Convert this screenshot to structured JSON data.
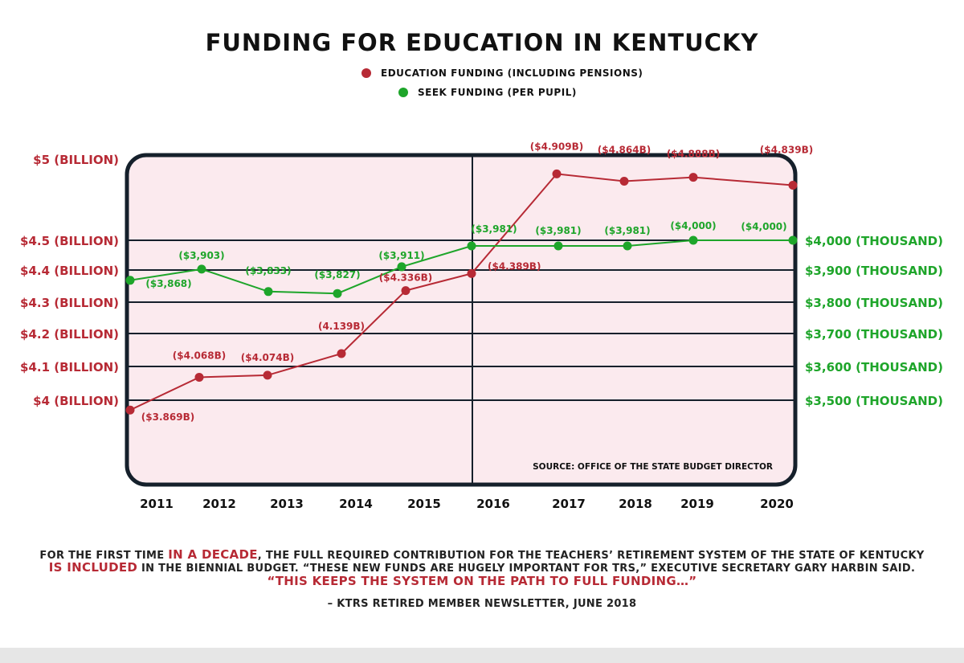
{
  "title": "FUNDING FOR EDUCATION IN KENTUCKY",
  "legend": [
    {
      "label": "EDUCATION FUNDING (INCLUDING PENSIONS)",
      "color": "#b72a35"
    },
    {
      "label": "SEEK FUNDING (PER PUPIL)",
      "color": "#1ea52a"
    }
  ],
  "colors": {
    "red": "#b72a35",
    "green": "#1ea52a",
    "frame": "#15202b",
    "plot_bg": "#fbeaee"
  },
  "source": "SOURCE: OFFICE OF THE STATE BUDGET DIRECTOR",
  "chart_data": {
    "type": "line",
    "title": "FUNDING FOR EDUCATION IN KENTUCKY",
    "categories": [
      "2011",
      "2012",
      "2013",
      "2014",
      "2015",
      "2016",
      "2017",
      "2018",
      "2019",
      "2020"
    ],
    "left_axis": {
      "ticks": [
        {
          "value": 5.0,
          "label": "$5 (BILLION)"
        },
        {
          "value": 4.5,
          "label": "$4.5 (BILLION)"
        },
        {
          "value": 4.4,
          "label": "$4.4 (BILLION)"
        },
        {
          "value": 4.3,
          "label": "$4.3 (BILLION)"
        },
        {
          "value": 4.2,
          "label": "$4.2 (BILLION)"
        },
        {
          "value": 4.1,
          "label": "$4.1 (BILLION)"
        },
        {
          "value": 4.0,
          "label": "$4 (BILLION)"
        }
      ]
    },
    "right_axis": {
      "ticks": [
        {
          "value": 4000,
          "label": "$4,000 (THOUSAND)"
        },
        {
          "value": 3900,
          "label": "$3,900 (THOUSAND)"
        },
        {
          "value": 3800,
          "label": "$3,800 (THOUSAND)"
        },
        {
          "value": 3700,
          "label": "$3,700 (THOUSAND)"
        },
        {
          "value": 3600,
          "label": "$3,600 (THOUSAND)"
        },
        {
          "value": 3500,
          "label": "$3,500 (THOUSAND)"
        }
      ]
    },
    "series": [
      {
        "name": "EDUCATION FUNDING (INCLUDING PENSIONS)",
        "axis": "left",
        "values": [
          3.869,
          4.068,
          4.074,
          4.139,
          4.336,
          4.389,
          4.909,
          4.864,
          4.888,
          4.839
        ],
        "labels": [
          "($3.869B)",
          "($4.068B)",
          "($4.074B)",
          "(4.139B)",
          "($4.336B)",
          "($4.389B)",
          "($4.909B)",
          "($4.864B)",
          "($4.888B)",
          "($4.839B)"
        ]
      },
      {
        "name": "SEEK FUNDING (PER PUPIL)",
        "axis": "right",
        "values": [
          3868,
          3903,
          3833,
          3827,
          3911,
          3981,
          3981,
          3981,
          4000,
          4000
        ],
        "labels": [
          "($3,868)",
          "($3,903)",
          "($3,833)",
          "($3,827)",
          "($3,911)",
          "($3,981)",
          "($3,981)",
          "($3,981)",
          "($4,000)",
          "($4,000)"
        ]
      }
    ]
  },
  "quote": {
    "line1_pre": "FOR THE FIRST TIME ",
    "line1_accent": "IN A DECADE",
    "line1_post": ", THE FULL REQUIRED CONTRIBUTION FOR THE TEACHERS’ RETIREMENT SYSTEM OF THE STATE OF KENTUCKY",
    "line2_accent": "IS INCLUDED",
    "line2_post": " IN THE BIENNIAL BUDGET.  “THESE NEW FUNDS ARE HUGELY IMPORTANT FOR TRS,” EXECUTIVE SECRETARY GARY HARBIN SAID.",
    "line3": "“THIS KEEPS THE SYSTEM ON THE PATH TO FULL FUNDING…”",
    "attribution": "– KTRS RETIRED MEMBER NEWSLETTER, JUNE 2018"
  }
}
